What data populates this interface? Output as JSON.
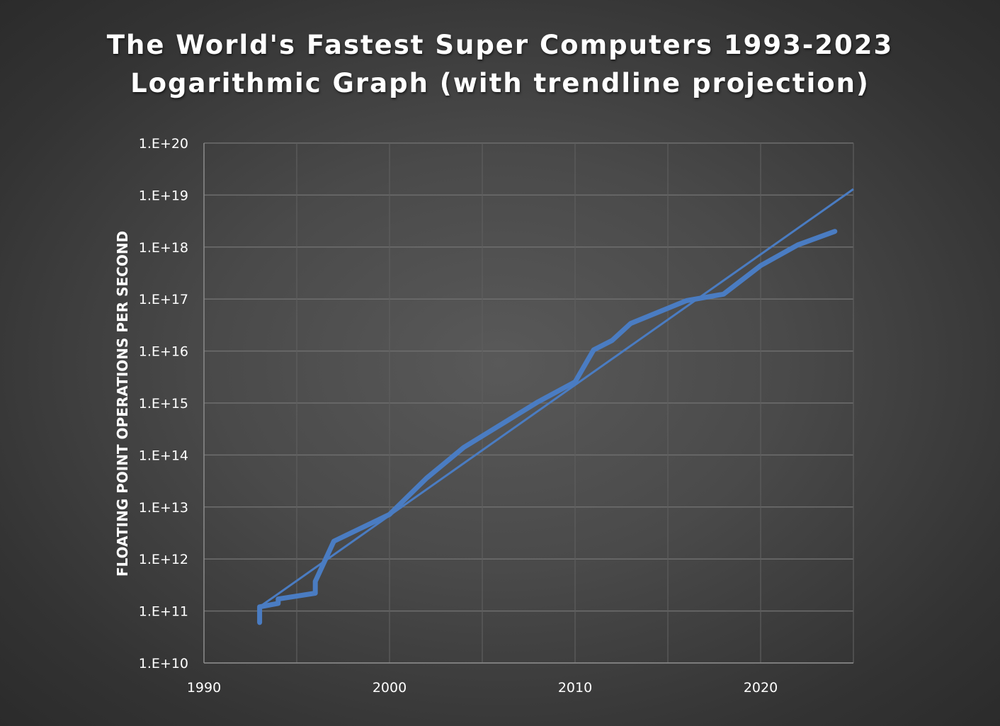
{
  "chart_data": {
    "type": "line",
    "title_lines": [
      "The World's Fastest Super Computers 1993-2023",
      "Logarithmic Graph (with trendline projection)"
    ],
    "xlabel": "",
    "ylabel": "FLOATING POINT OPERATIONS PER SECOND",
    "y_scale": "log",
    "xlim": [
      1990,
      2025
    ],
    "ylim": [
      10000000000.0,
      1e+20
    ],
    "x_ticks": [
      1990,
      2000,
      2010,
      2020
    ],
    "x_tick_labels": [
      "1990",
      "2000",
      "2010",
      "2020"
    ],
    "y_ticks": [
      10000000000.0,
      100000000000.0,
      1000000000000.0,
      10000000000000.0,
      100000000000000.0,
      1000000000000000.0,
      1e+16,
      1e+17,
      1e+18,
      1e+19,
      1e+20
    ],
    "y_tick_labels": [
      "1.E+10",
      "1.E+11",
      "1.E+12",
      "1.E+13",
      "1.E+14",
      "1.E+15",
      "1.E+16",
      "1.E+17",
      "1.E+18",
      "1.E+19",
      "1.E+20"
    ],
    "grid": true,
    "legend": "none",
    "line_color": "#4a7cc2",
    "series": [
      {
        "points": [
          [
            1993.0,
            60000000000.0
          ],
          [
            1993.0,
            120000000000.0
          ],
          [
            1994.0,
            140000000000.0
          ],
          [
            1994.0,
            170000000000.0
          ],
          [
            1996.0,
            220000000000.0
          ],
          [
            1996.0,
            370000000000.0
          ],
          [
            1997.0,
            2200000000000.0
          ],
          [
            2000.0,
            7200000000000.0
          ],
          [
            2002.0,
            36000000000000.0
          ],
          [
            2004.0,
            140000000000000.0
          ],
          [
            2008.0,
            1050000000000000.0
          ],
          [
            2010.0,
            2550000000000000.0
          ],
          [
            2011.0,
            1.05e+16
          ],
          [
            2012.0,
            1.6e+16
          ],
          [
            2013.0,
            3.4e+16
          ],
          [
            2016.0,
            9.3e+16
          ],
          [
            2018.0,
            1.24e+17
          ],
          [
            2020.0,
            4.4e+17
          ],
          [
            2022.0,
            1.1e+18
          ],
          [
            2024.0,
            2e+18
          ]
        ]
      }
    ],
    "trendline": {
      "points": [
        [
          1993.0,
          120000000000.0
        ],
        [
          2025.0,
          1.3e+19
        ]
      ]
    }
  }
}
